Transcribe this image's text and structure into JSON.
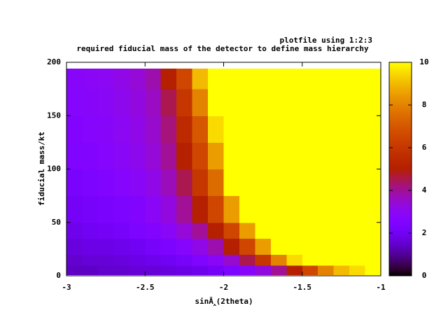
{
  "chart_data": {
    "type": "heatmap",
    "title": "required fiducial mass of the detector to define mass hierarchy",
    "series_name": "plotfile using 1:2:3",
    "xlabel": "sinÂ‸(2theta)",
    "ylabel": "fiducial mass/kt",
    "xlim": [
      -3,
      -1
    ],
    "xticks": [
      -3,
      -2.5,
      -2,
      -1.5,
      -1
    ],
    "ylim": [
      0,
      200
    ],
    "yticks": [
      0,
      50,
      100,
      150,
      200
    ],
    "zlim": [
      0,
      10
    ],
    "zticks": [
      0,
      2,
      4,
      6,
      8,
      10
    ],
    "palette": "rgbformulae 7,5,15",
    "x_edges": [
      -3,
      -2.9,
      -2.8,
      -2.7,
      -2.6,
      -2.5,
      -2.4,
      -2.3,
      -2.2,
      -2.1,
      -2,
      -1.9,
      -1.8,
      -1.7,
      -1.6,
      -1.5,
      -1.4,
      -1.3,
      -1.2,
      -1.1,
      -1
    ],
    "y_edges": [
      1,
      10,
      20,
      35,
      50,
      75,
      100,
      125,
      150,
      175,
      194
    ],
    "z": [
      [
        1.4,
        1.4,
        1.5,
        1.5,
        1.6,
        1.6,
        1.7,
        1.8,
        1.9,
        2.1,
        2.4,
        2.8,
        3.3,
        4,
        5,
        6.5,
        8,
        9,
        9.5,
        10
      ],
      [
        1.5,
        1.6,
        1.6,
        1.7,
        1.8,
        1.9,
        2,
        2.2,
        2.5,
        2.9,
        3.5,
        4.5,
        6,
        8,
        9.5,
        10,
        10,
        10,
        10,
        10
      ],
      [
        1.7,
        1.8,
        1.8,
        1.9,
        2,
        2.2,
        2.4,
        2.7,
        3.2,
        3.8,
        5,
        6.5,
        8.5,
        10,
        10,
        10,
        10,
        10,
        10,
        10
      ],
      [
        1.9,
        2,
        2.1,
        2.2,
        2.4,
        2.6,
        2.9,
        3.4,
        4,
        5,
        6.5,
        8.5,
        10,
        10,
        10,
        10,
        10,
        10,
        10,
        10
      ],
      [
        2.1,
        2.2,
        2.3,
        2.4,
        2.6,
        2.9,
        3.3,
        4,
        5,
        6.5,
        8.5,
        10,
        10,
        10,
        10,
        10,
        10,
        10,
        10,
        10
      ],
      [
        2.3,
        2.4,
        2.5,
        2.7,
        2.9,
        3.2,
        3.7,
        4.5,
        6,
        7.5,
        10,
        10,
        10,
        10,
        10,
        10,
        10,
        10,
        10,
        10
      ],
      [
        2.5,
        2.6,
        2.7,
        2.9,
        3.1,
        3.4,
        4,
        5,
        6.5,
        8.5,
        10,
        10,
        10,
        10,
        10,
        10,
        10,
        10,
        10,
        10
      ],
      [
        2.6,
        2.7,
        2.8,
        3,
        3.2,
        3.5,
        4.2,
        5.5,
        7,
        9.5,
        10,
        10,
        10,
        10,
        10,
        10,
        10,
        10,
        10,
        10
      ],
      [
        2.7,
        2.8,
        2.9,
        3.1,
        3.3,
        3.6,
        4.5,
        6,
        8,
        10,
        10,
        10,
        10,
        10,
        10,
        10,
        10,
        10,
        10,
        10
      ],
      [
        2.8,
        2.9,
        3,
        3.2,
        3.4,
        3.8,
        5,
        6.5,
        9,
        10,
        10,
        10,
        10,
        10,
        10,
        10,
        10,
        10,
        10,
        10
      ]
    ]
  }
}
